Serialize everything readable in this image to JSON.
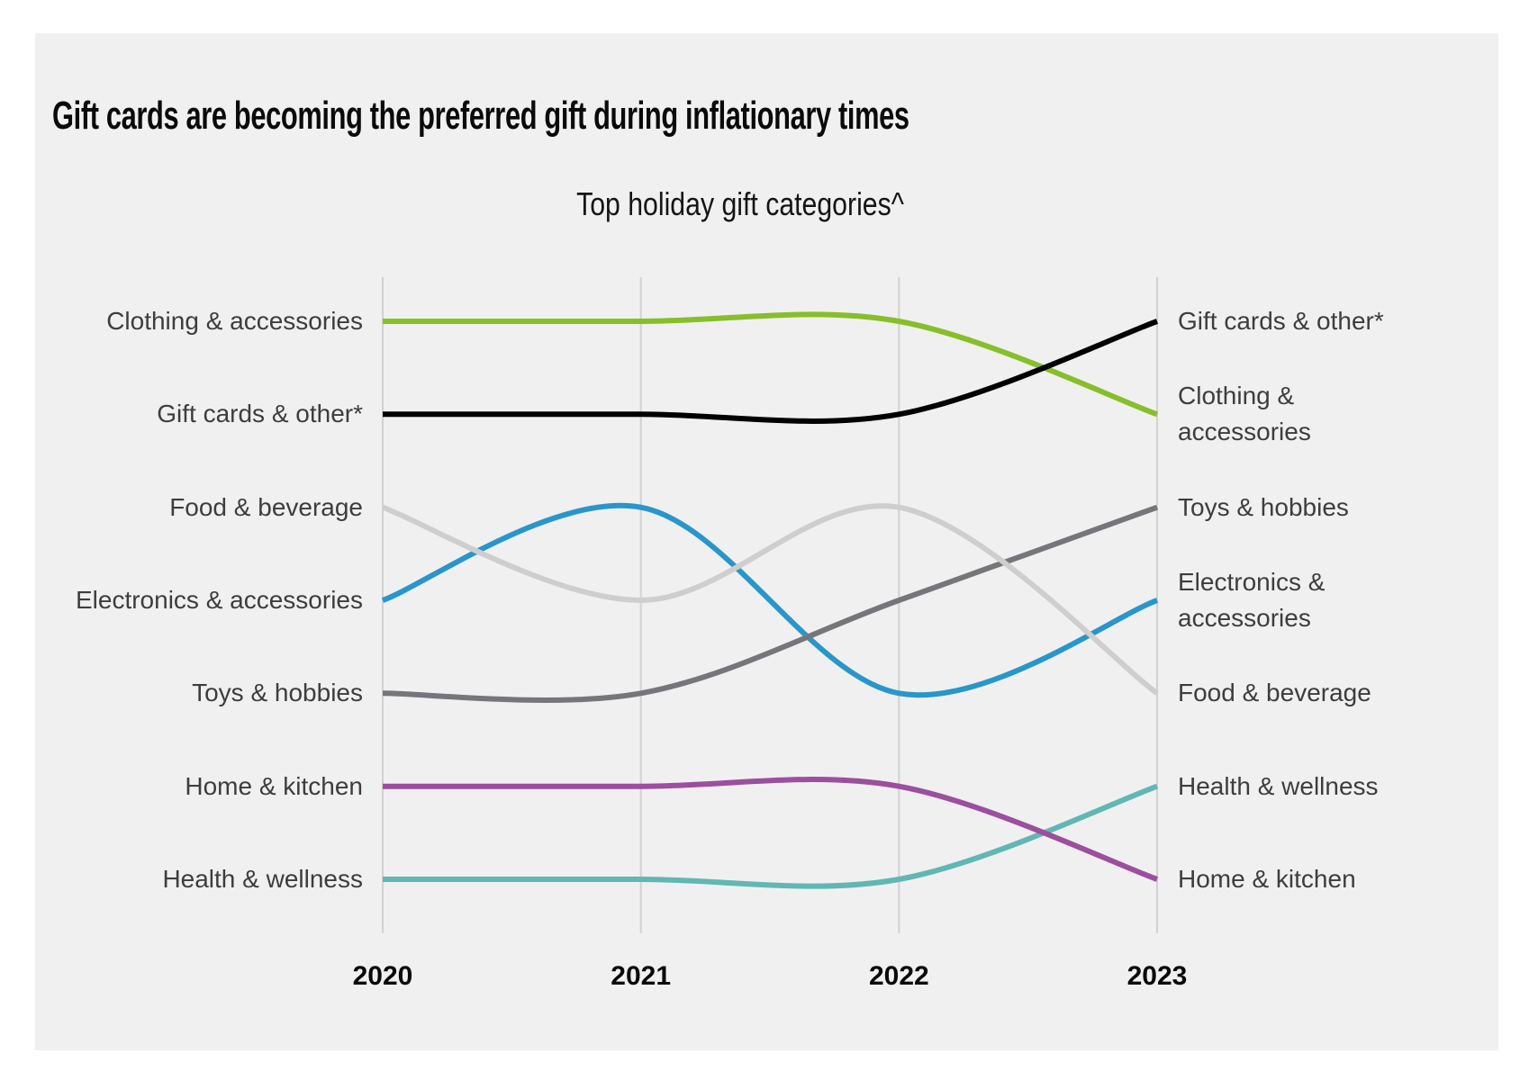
{
  "page": {
    "background": "#FFFFFF",
    "panel_background": "#F1F0F0"
  },
  "header": {
    "title": "Gift cards are becoming the preferred gift during inflationary times"
  },
  "chart_data": {
    "type": "line",
    "subtype": "bump-rank-chart",
    "title": "Top holiday gift categories^",
    "x": [
      2020,
      2021,
      2022,
      2023
    ],
    "x_tick_labels": [
      "2020",
      "2021",
      "2022",
      "2023"
    ],
    "y_meaning": "rank of gift category, 1 = top",
    "ylim": [
      1,
      7
    ],
    "gridlines": "vertical-only",
    "gridline_color": "#D2D1D1",
    "legend_position": "labels-at-line-ends",
    "series": [
      {
        "name": "Clothing & accessories",
        "color": "#86BF2A",
        "ranks": [
          1,
          1,
          1,
          2
        ]
      },
      {
        "name": "Gift cards & other*",
        "color": "#000000",
        "ranks": [
          2,
          2,
          2,
          1
        ]
      },
      {
        "name": "Electronics & accessories",
        "color": "#2996CB",
        "ranks": [
          4,
          3,
          5,
          4
        ]
      },
      {
        "name": "Toys & hobbies",
        "color": "#76767A",
        "ranks": [
          5,
          5,
          4,
          3
        ]
      },
      {
        "name": "Food & beverage",
        "color": "#CFCECD",
        "ranks": [
          3,
          4,
          3,
          5
        ]
      },
      {
        "name": "Health & wellness",
        "color": "#60B7B4",
        "ranks": [
          7,
          7,
          7,
          6
        ]
      },
      {
        "name": "Home & kitchen",
        "color": "#9C4E9F",
        "ranks": [
          6,
          6,
          6,
          7
        ]
      }
    ]
  }
}
